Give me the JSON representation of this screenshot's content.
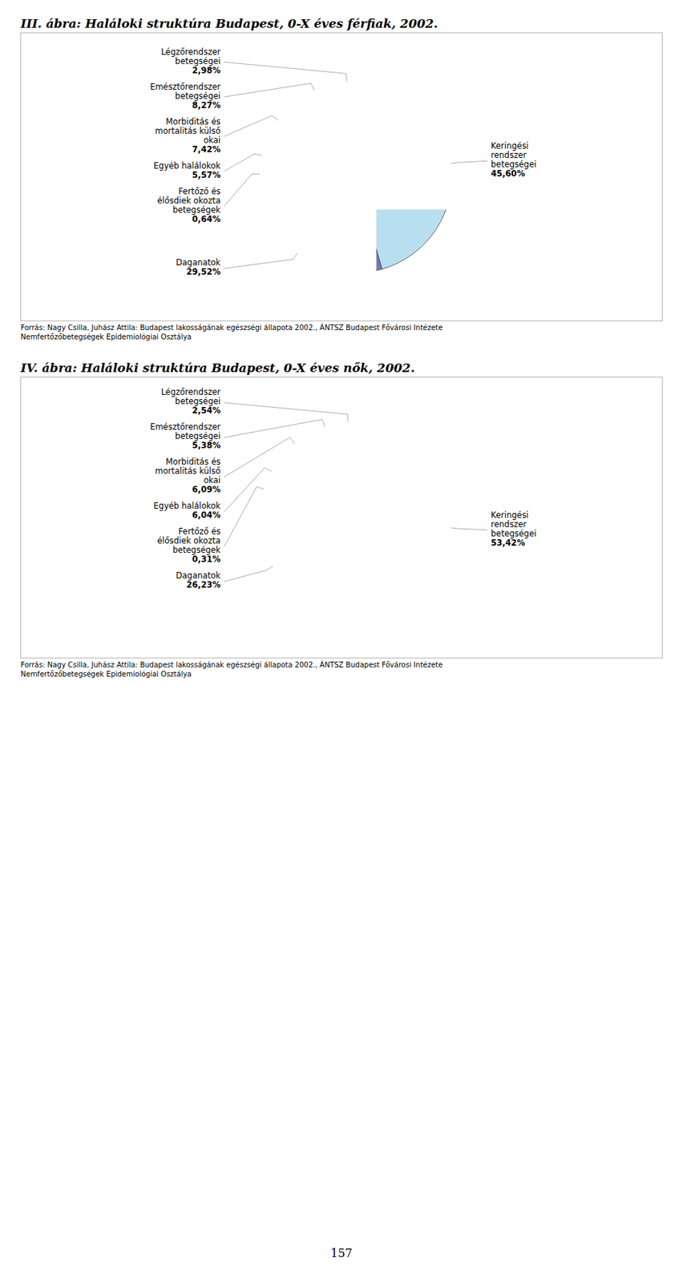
{
  "chart_data": [
    {
      "type": "pie",
      "title": "III. ábra: Haláloki struktúra Budapest, 0-X éves férfiak, 2002.",
      "categories": [
        "Keringési\nrendszer\nbetegségei",
        "Daganatok",
        "Fertőző és\nélősdiek okozta\nbetegségek",
        "Egyéb halálokok",
        "Morbiditás és\nmortalitás külső\nokai",
        "Emésztőrendszer\nbetegségei",
        "Légzőrendszer\nbetegségei"
      ],
      "values": [
        45.6,
        29.52,
        0.64,
        5.57,
        7.42,
        8.27,
        2.98
      ],
      "value_labels": [
        "45,60%",
        "29,52%",
        "0,64%",
        "5,57%",
        "7,42%",
        "8,27%",
        "2,98%"
      ],
      "colors": [
        "#b8dff0",
        "#7878b0",
        "#3a3a9a",
        "#4db8d8",
        "#30b8c8",
        "#20c8d8",
        "#60dde8"
      ],
      "data_labels": true,
      "annotations": [
        "Forrás: Nagy Csilla, Juhász Attila: Budapest lakosságának egészségi állapota 2002., ÁNTSZ Budapest Fővárosi Intézete",
        "Nemfertőzőbetegségek Epidemiológiai Osztálya"
      ]
    },
    {
      "type": "pie",
      "title": "IV. ábra: Haláloki struktúra Budapest, 0-X éves nők, 2002.",
      "categories": [
        "Keringési\nrendszer\nbetegségei",
        "Daganatok",
        "Fertőző és\nélősdiek okozta\nbetegségek",
        "Egyéb halálokok",
        "Morbiditás és\nmortalitás külső\nokai",
        "Emésztőrendszer\nbetegségei",
        "Légzőrendszer\nbetegségei"
      ],
      "values": [
        53.42,
        26.23,
        0.31,
        6.04,
        6.09,
        5.38,
        2.54
      ],
      "value_labels": [
        "53,42%",
        "26,23%",
        "0,31%",
        "6,04%",
        "6,09%",
        "5,38%",
        "2,54%"
      ],
      "colors": [
        "#ffffc0",
        "#ff6600",
        "#cc2200",
        "#ffaa00",
        "#ffdd00",
        "#ffd090",
        "#ffee99"
      ],
      "data_labels": true,
      "annotations": [
        "Forrás: Nagy Csilla, Juhász Attila: Budapest lakosságának egészségi állapota 2002., ÁNTSZ Budapest Fővárosi Intézete",
        "Nemfertőzőbetegségek Epidemiológiai Osztálya"
      ]
    }
  ],
  "page_number": "157"
}
